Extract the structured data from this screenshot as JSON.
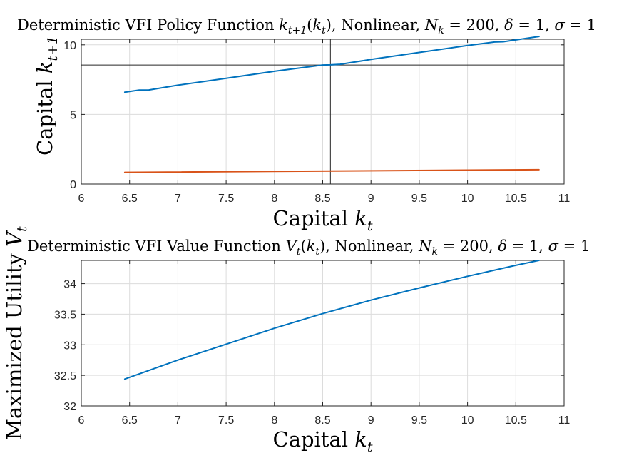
{
  "chart_data": [
    {
      "type": "line",
      "title": "Deterministic VFI Policy Function k_{t+1}(k_t), Nonlinear, N_k = 200, δ = 1, σ = 1",
      "title_parts": {
        "prefix": "Deterministic VFI Policy Function ",
        "fn": "k",
        "fn_sub": "t+1",
        "arg": "k",
        "arg_sub": "t",
        "middle": ", Nonlinear, ",
        "nk": "N",
        "nk_sub": "k",
        "nk_val": " = 200, ",
        "delta": "δ",
        "delta_val": " = 1, ",
        "sigma": "σ",
        "sigma_val": " = 1"
      },
      "xlabel": "Capital k_t",
      "xlabel_parts": {
        "text": "Capital ",
        "sym": "k",
        "sub": "t"
      },
      "ylabel": "Capital k_{t+1}",
      "ylabel_parts": {
        "text": "Capital ",
        "sym": "k",
        "sub": "t+1"
      },
      "xlim": [
        6,
        11
      ],
      "ylim": [
        0,
        10.4
      ],
      "xticks": [
        "6",
        "6.5",
        "7",
        "7.5",
        "8",
        "8.5",
        "9",
        "9.5",
        "10",
        "10.5",
        "11"
      ],
      "yticks": [
        "0",
        "5",
        "10"
      ],
      "xtick_values": [
        6,
        6.5,
        7,
        7.5,
        8,
        8.5,
        9,
        9.5,
        10,
        10.5,
        11
      ],
      "ytick_values": [
        0,
        5,
        10
      ],
      "grid": true,
      "crosshair": {
        "x": 8.58,
        "y": 8.55
      },
      "series": [
        {
          "color": "#0072bd",
          "x": [
            6.45,
            6.6,
            6.7,
            7.0,
            7.5,
            8.0,
            8.5,
            8.58,
            8.68,
            9.0,
            9.5,
            10.0,
            10.28,
            10.37,
            10.74
          ],
          "y": [
            6.6,
            6.75,
            6.76,
            7.1,
            7.6,
            8.1,
            8.55,
            8.56,
            8.6,
            8.95,
            9.45,
            9.95,
            10.2,
            10.22,
            10.6
          ]
        },
        {
          "color": "#d95319",
          "x": [
            6.45,
            10.74
          ],
          "y": [
            0.84,
            1.03
          ]
        }
      ]
    },
    {
      "type": "line",
      "title": "Deterministic VFI Value Function V_t(k_t), Nonlinear, N_k = 200, δ = 1, σ = 1",
      "title_parts": {
        "prefix": "Deterministic VFI Value Function ",
        "fn": "V",
        "fn_sub": "t",
        "arg": "k",
        "arg_sub": "t",
        "middle": ", Nonlinear, ",
        "nk": "N",
        "nk_sub": "k",
        "nk_val": " = 200, ",
        "delta": "δ",
        "delta_val": " = 1, ",
        "sigma": "σ",
        "sigma_val": " = 1"
      },
      "xlabel": "Capital k_t",
      "xlabel_parts": {
        "text": "Capital ",
        "sym": "k",
        "sub": "t"
      },
      "ylabel": "Maximized Utility V_t",
      "ylabel_parts": {
        "text": "Maximized Utility ",
        "sym": "V",
        "sub": "t"
      },
      "xlim": [
        6,
        11
      ],
      "ylim": [
        32,
        34.38
      ],
      "xticks": [
        "6",
        "6.5",
        "7",
        "7.5",
        "8",
        "8.5",
        "9",
        "9.5",
        "10",
        "10.5",
        "11"
      ],
      "yticks": [
        "32",
        "32.5",
        "33",
        "33.5",
        "34"
      ],
      "xtick_values": [
        6,
        6.5,
        7,
        7.5,
        8,
        8.5,
        9,
        9.5,
        10,
        10.5,
        11
      ],
      "ytick_values": [
        32,
        32.5,
        33,
        33.5,
        34
      ],
      "grid": true,
      "series": [
        {
          "color": "#0072bd",
          "x": [
            6.45,
            7.0,
            7.5,
            8.0,
            8.5,
            9.0,
            9.5,
            10.0,
            10.5,
            10.74
          ],
          "y": [
            32.44,
            32.75,
            33.01,
            33.27,
            33.51,
            33.73,
            33.93,
            34.12,
            34.3,
            34.38
          ]
        }
      ]
    }
  ]
}
